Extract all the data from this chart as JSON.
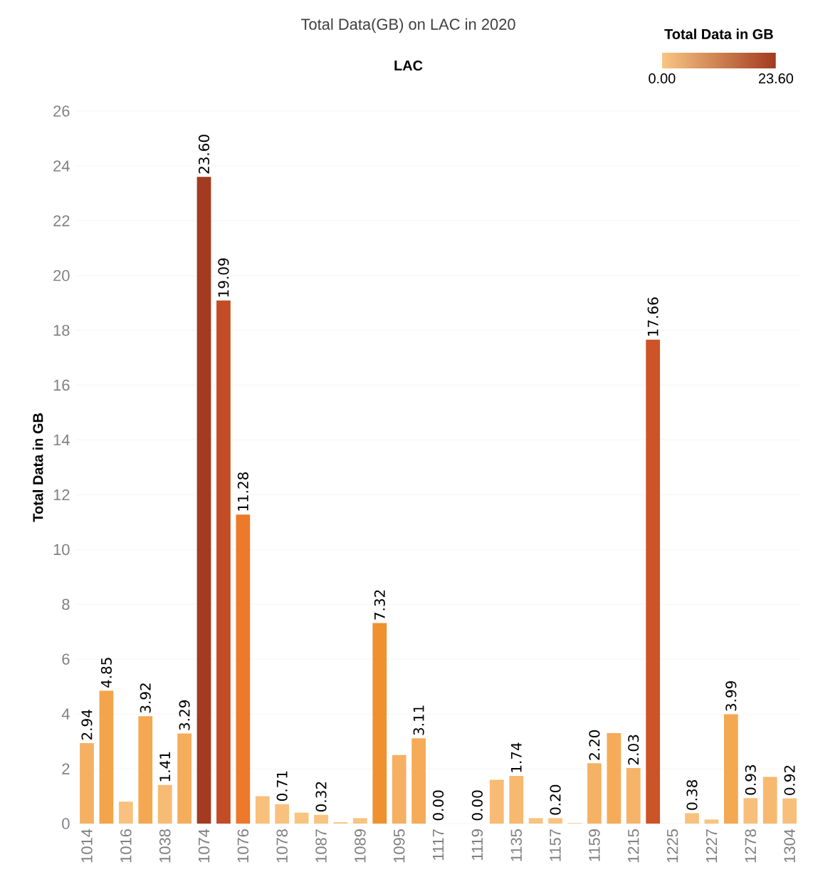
{
  "chart_data": {
    "type": "bar",
    "title": "Total Data(GB) on LAC in 2020",
    "subtitle": "LAC",
    "ylabel": "Total Data in GB",
    "clabel": "Total Data in GB",
    "clim": [
      0,
      23.6
    ],
    "cticks": [
      {
        "value": 0,
        "label": "0.00"
      },
      {
        "value": 23.6,
        "label": "23.60"
      }
    ],
    "categories": [
      "1014",
      null,
      "1016",
      null,
      "1038",
      null,
      "1074",
      null,
      "1076",
      null,
      "1078",
      null,
      "1087",
      null,
      "1089",
      null,
      "1095",
      null,
      "1117",
      null,
      "1119",
      null,
      "1135",
      null,
      "1157",
      null,
      "1159",
      null,
      "1215",
      null,
      "1225",
      null,
      "1227",
      null,
      "1278",
      null,
      "1304"
    ],
    "values": [
      2.94,
      4.85,
      0.8,
      3.92,
      1.41,
      3.29,
      23.6,
      19.09,
      11.28,
      1.0,
      0.71,
      0.4,
      0.32,
      0.05,
      0.2,
      7.32,
      2.5,
      3.11,
      0.0,
      null,
      0.0,
      1.6,
      1.74,
      0.2,
      0.2,
      0.02,
      2.2,
      3.3,
      2.03,
      17.66,
      null,
      0.38,
      0.15,
      3.99,
      0.93,
      1.7,
      0.92
    ],
    "value_labels": [
      "2.94",
      "4.85",
      null,
      "3.92",
      "1.41",
      "3.29",
      "23.60",
      "19.09",
      "11.28",
      null,
      "0.71",
      null,
      "0.32",
      null,
      null,
      "7.32",
      null,
      "3.11",
      "0.00",
      null,
      "0.00",
      null,
      "1.74",
      null,
      "0.20",
      null,
      "2.20",
      null,
      "2.03",
      "17.66",
      null,
      "0.38",
      null,
      "3.99",
      "0.93",
      null,
      "0.92"
    ],
    "colors": [
      "#f5b062",
      "#f4a44a",
      "#f8c27e",
      "#f4a852",
      "#f7bb74",
      "#f5ad5c",
      "#a23b1f",
      "#c24c24",
      "#ec7a2a",
      "#f8c07b",
      "#f8c27e",
      "#f8c47f",
      "#f8c47f",
      "#f9c683",
      "#f8c47f",
      "#f0902f",
      "#f5b062",
      "#f5ab58",
      "#f9c683",
      "#f9c683",
      "#f9c683",
      "#f7bb74",
      "#f7b96f",
      "#f8c47f",
      "#f8c47f",
      "#f9c683",
      "#f5b265",
      "#f5ab58",
      "#f5b468",
      "#cd5427",
      "#f9c683",
      "#f8c27e",
      "#f8c47f",
      "#f4a852",
      "#f8bf7a",
      "#f7b96f",
      "#f8bf7a"
    ],
    "ylim": [
      0,
      26
    ],
    "yticks": [
      0,
      2,
      4,
      6,
      8,
      10,
      12,
      14,
      16,
      18,
      20,
      22,
      24,
      26
    ],
    "grid": "y"
  }
}
